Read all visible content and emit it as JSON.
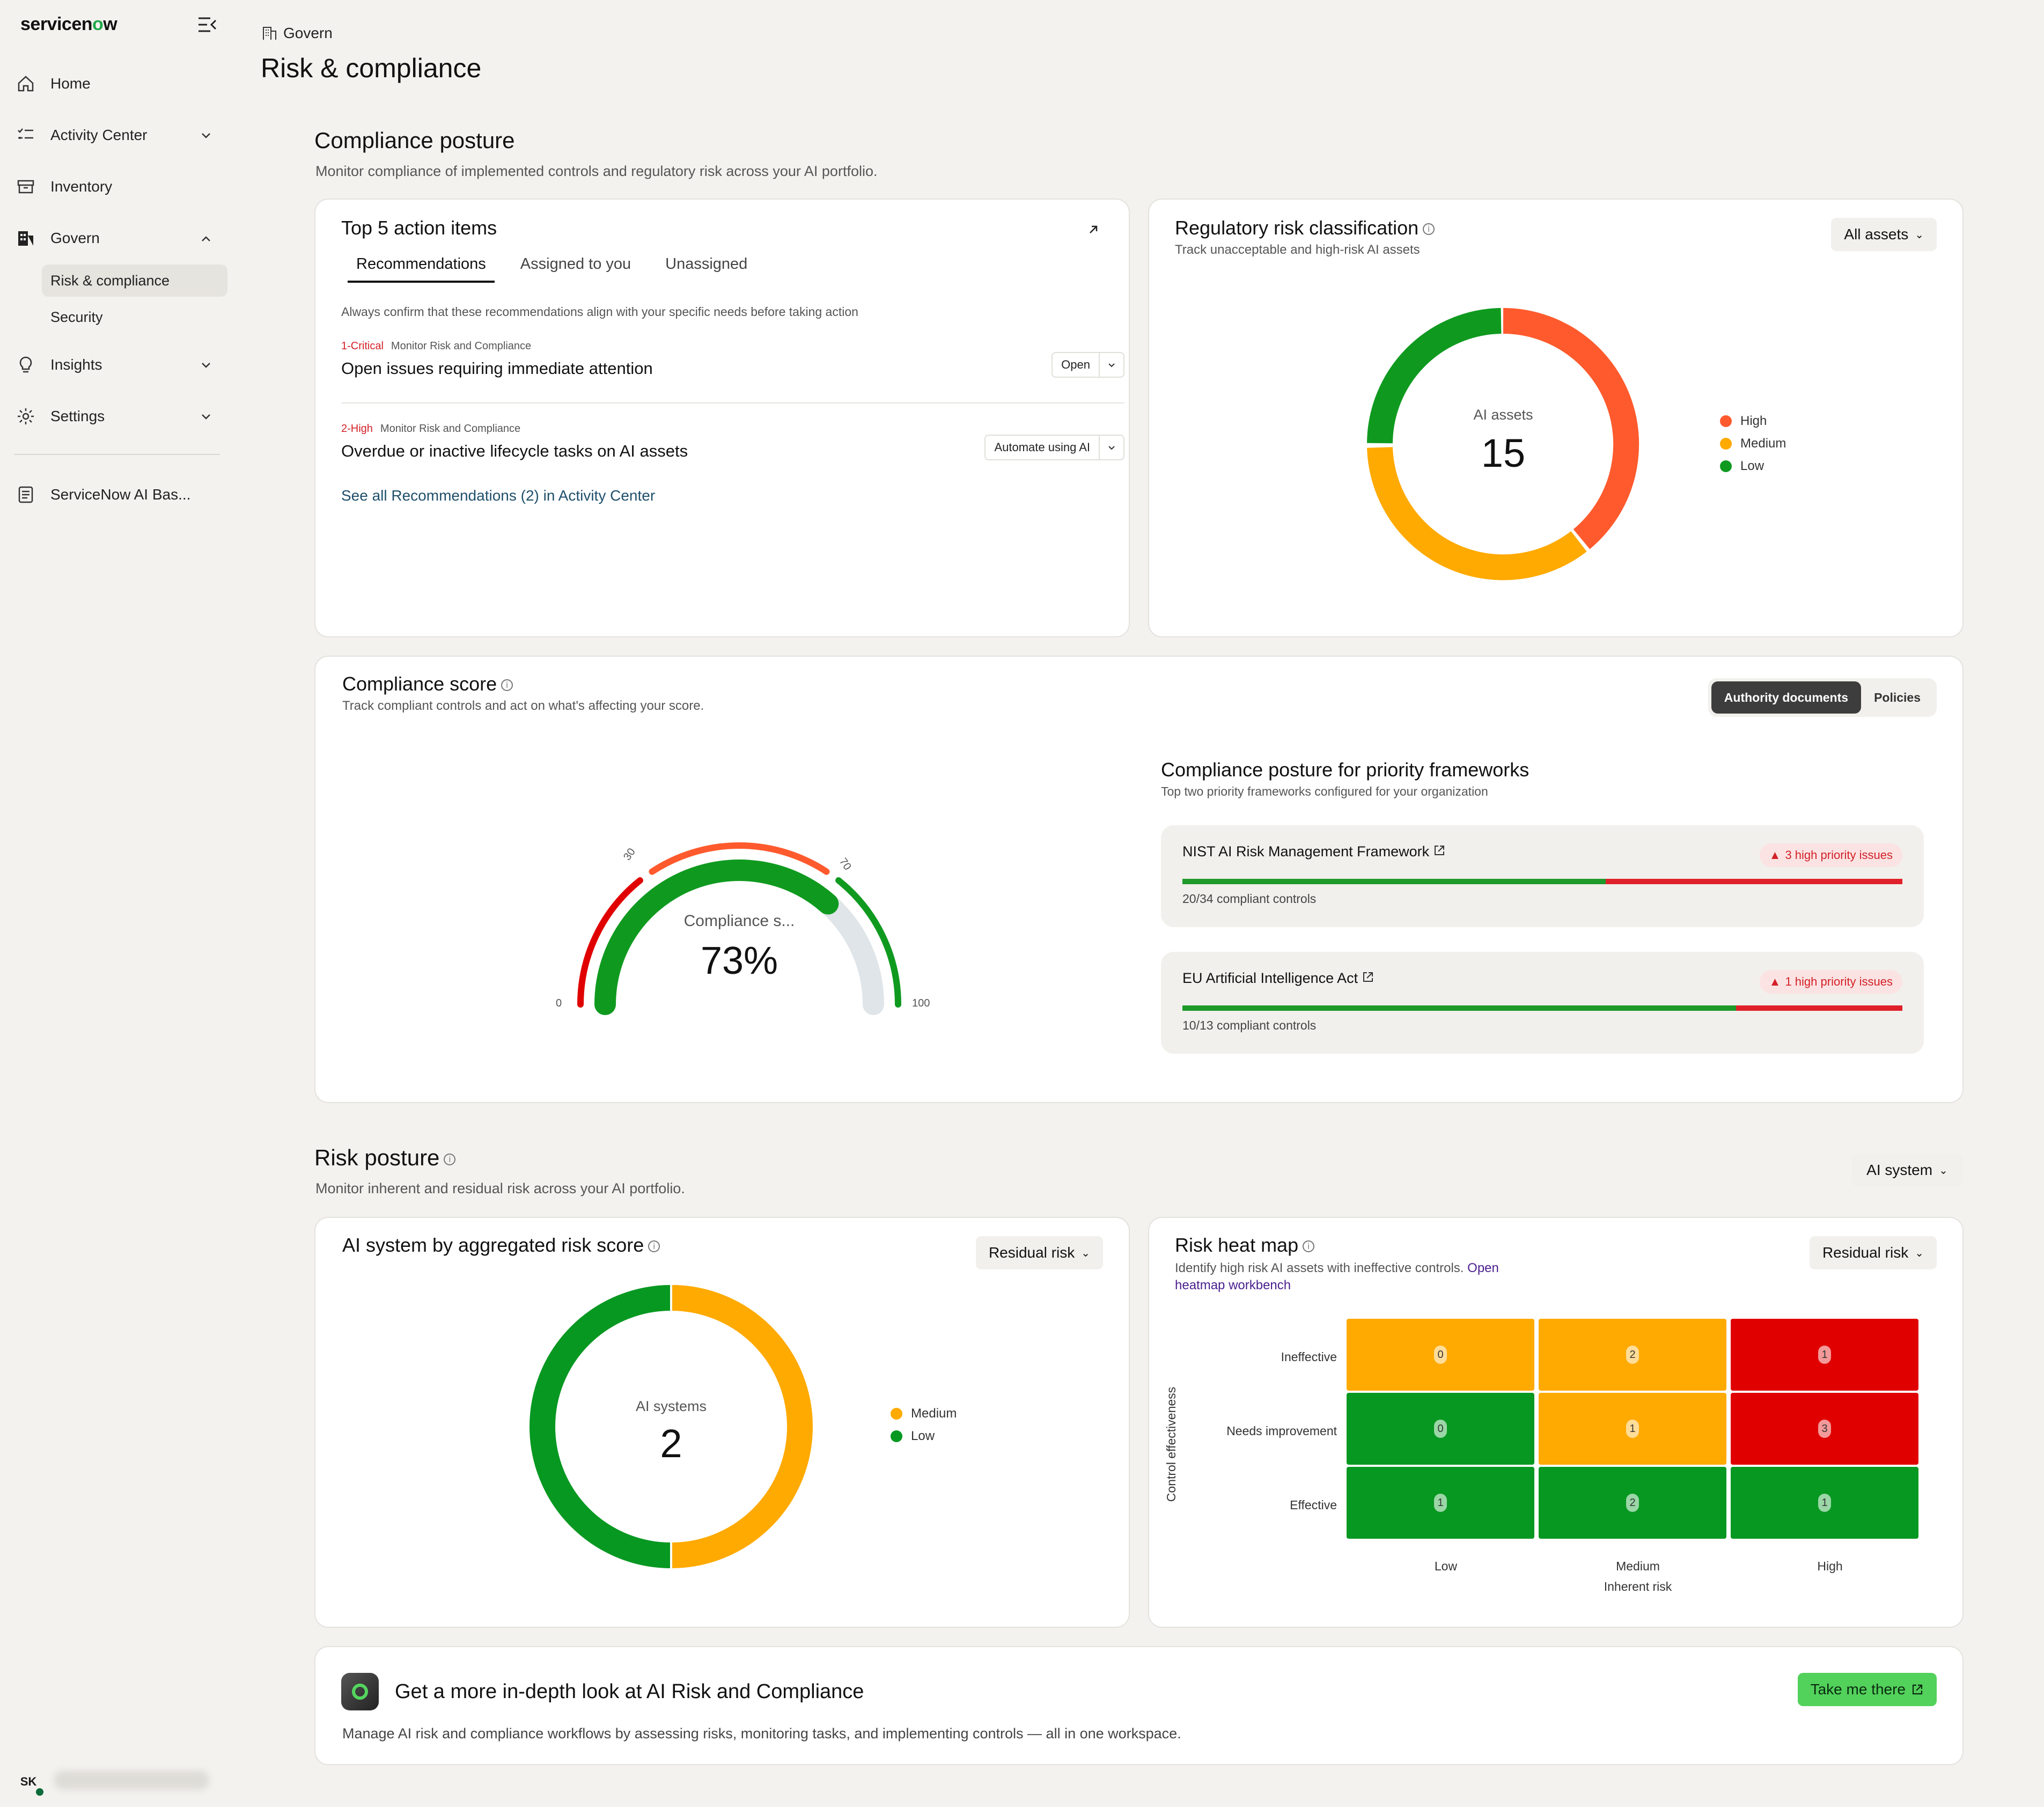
{
  "sidebar": {
    "logo_prefix": "servicen",
    "logo_o": "o",
    "logo_suffix": "w",
    "items": [
      {
        "label": "Home",
        "icon": "home-icon"
      },
      {
        "label": "Activity Center",
        "icon": "tasks-icon"
      },
      {
        "label": "Inventory",
        "icon": "inventory-icon"
      },
      {
        "label": "Govern",
        "icon": "building-icon"
      },
      {
        "label": "Insights",
        "icon": "lightbulb-icon"
      },
      {
        "label": "Settings",
        "icon": "gear-icon"
      },
      {
        "label": "ServiceNow AI Bas...",
        "icon": "document-icon"
      }
    ],
    "govern_sub": [
      {
        "label": "Risk & compliance"
      },
      {
        "label": "Security"
      }
    ],
    "user_initials": "SK"
  },
  "header": {
    "breadcrumb": "Govern",
    "title": "Risk & compliance"
  },
  "compliance_posture": {
    "title": "Compliance posture",
    "subtitle": "Monitor compliance of implemented controls and regulatory risk across your AI portfolio."
  },
  "action_items": {
    "title": "Top 5 action items",
    "tabs": [
      "Recommendations",
      "Assigned to you",
      "Unassigned"
    ],
    "hint": "Always confirm that these recommendations align with your specific needs before taking action",
    "rows": [
      {
        "severity": "1-Critical",
        "category": "Monitor Risk and Compliance",
        "title": "Open issues requiring immediate attention",
        "button": "Open"
      },
      {
        "severity": "2-High",
        "category": "Monitor Risk and Compliance",
        "title": "Overdue or inactive lifecycle tasks on AI assets",
        "button": "Automate using AI"
      }
    ],
    "see_all": "See all Recommendations (2) in Activity Center"
  },
  "regulatory": {
    "title": "Regulatory risk classification",
    "subtitle": "Track unacceptable and high-risk AI assets",
    "dropdown": "All assets",
    "center_label": "AI assets",
    "center_value": "15",
    "legend": [
      {
        "label": "High",
        "color": "#ff5a2d"
      },
      {
        "label": "Medium",
        "color": "#ffaa00"
      },
      {
        "label": "Low",
        "color": "#0f9a1f"
      }
    ]
  },
  "compliance_score": {
    "title": "Compliance score",
    "subtitle": "Track compliant controls and act on what's affecting your score.",
    "toggle": [
      "Authority documents",
      "Policies"
    ],
    "gauge_label": "Compliance s...",
    "gauge_value": "73%",
    "gauge_fraction": 0.73,
    "ticks": [
      "0",
      "30",
      "70",
      "100"
    ],
    "frameworks_title": "Compliance posture for priority frameworks",
    "frameworks_subtitle": "Top two priority frameworks configured for your organization",
    "frameworks": [
      {
        "name": "NIST AI Risk Management Framework",
        "badge": "3 high priority issues",
        "count": "20/34 compliant controls",
        "compliant": 20,
        "total": 34
      },
      {
        "name": "EU Artificial Intelligence Act",
        "badge": "1 high priority issues",
        "count": "10/13 compliant controls",
        "compliant": 10,
        "total": 13
      }
    ]
  },
  "risk_posture": {
    "title": "Risk posture",
    "subtitle": "Monitor inherent and residual risk across your AI portfolio.",
    "dropdown": "AI system"
  },
  "aggregated": {
    "title": "AI system by aggregated risk score",
    "dropdown": "Residual risk",
    "center_label": "AI systems",
    "center_value": "2",
    "legend": [
      {
        "label": "Medium",
        "color": "#ffaa00"
      },
      {
        "label": "Low",
        "color": "#0f9a1f"
      }
    ]
  },
  "heatmap": {
    "title": "Risk heat map",
    "subtitle": "Identify high risk AI assets with ineffective controls.",
    "link": "Open heatmap workbench",
    "dropdown": "Residual risk",
    "y_title": "Control effectiveness",
    "x_title": "Inherent risk",
    "rows": [
      "Ineffective",
      "Needs improvement",
      "Effective"
    ],
    "cols": [
      "Low",
      "Medium",
      "High"
    ],
    "values": [
      [
        0,
        2,
        1
      ],
      [
        0,
        1,
        3
      ],
      [
        1,
        2,
        1
      ]
    ],
    "colors": [
      [
        "#ffaa00",
        "#ffaa00",
        "#e00000"
      ],
      [
        "#079821",
        "#ffaa00",
        "#e00000"
      ],
      [
        "#079821",
        "#079821",
        "#079821"
      ]
    ]
  },
  "cta": {
    "title": "Get a more in-depth look at AI Risk and Compliance",
    "body": "Manage AI risk and compliance workflows by assessing risks, monitoring tasks, and implementing controls — all in one workspace.",
    "button": "Take me there"
  }
}
